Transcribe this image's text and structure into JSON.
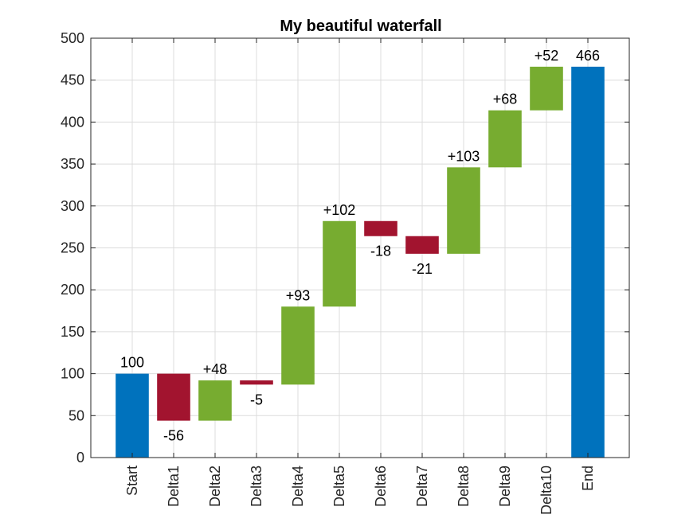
{
  "chart_data": {
    "type": "bar",
    "title": "My beautiful waterfall",
    "categories": [
      "Start",
      "Delta1",
      "Delta2",
      "Delta3",
      "Delta4",
      "Delta5",
      "Delta6",
      "Delta7",
      "Delta8",
      "Delta9",
      "Delta10",
      "End"
    ],
    "deltas": [
      100,
      -56,
      48,
      -5,
      93,
      102,
      -18,
      -21,
      103,
      68,
      52,
      466
    ],
    "labels": [
      "100",
      "-56",
      "+48",
      "-5",
      "+93",
      "+102",
      "-18",
      "-21",
      "+103",
      "+68",
      "+52",
      "466"
    ],
    "ylim": [
      0,
      500
    ],
    "yticks": [
      0,
      50,
      100,
      150,
      200,
      250,
      300,
      350,
      400,
      450,
      500
    ],
    "grid": true,
    "colors": {
      "total": "#0072BD",
      "increase": "#77AC30",
      "decrease": "#A2142F"
    }
  }
}
